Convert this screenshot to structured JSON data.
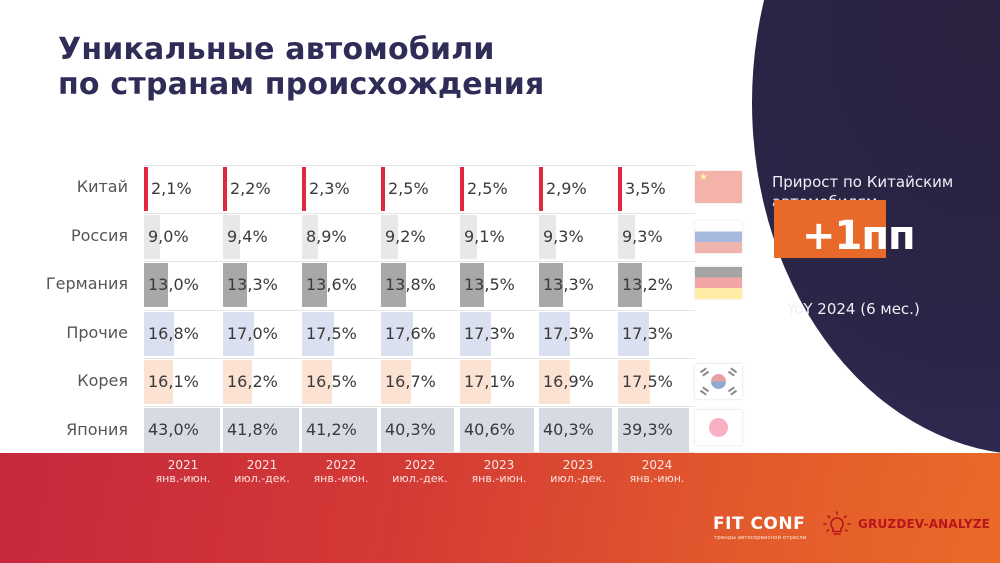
{
  "title": {
    "line1": "Уникальные автомобили",
    "line2": "по странам происхождения"
  },
  "colors": {
    "title": "#2f2d57",
    "china": "#e0293f",
    "russia": "#e8e8e8",
    "germany": "#a8a8a8",
    "other": "#dae0f0",
    "korea": "#fbe2d2",
    "japan": "#d5dae3",
    "badge": "#e86a2a",
    "panel": "#2a2446"
  },
  "chart_data": {
    "type": "table",
    "title": "Уникальные автомобили по странам происхождения",
    "unit": "%",
    "categories": [
      "2021 янв.-июн.",
      "2021 июл.-дек.",
      "2022 янв.-июн.",
      "2022 июл.-дек.",
      "2023 янв.-июн.",
      "2023 июл.-дек.",
      "2024 янв.-июн."
    ],
    "series": [
      {
        "name": "Китай",
        "values": [
          2.1,
          2.2,
          2.3,
          2.5,
          2.5,
          2.9,
          3.5
        ]
      },
      {
        "name": "Россия",
        "values": [
          9.0,
          9.4,
          8.9,
          9.2,
          9.1,
          9.3,
          9.3
        ]
      },
      {
        "name": "Германия",
        "values": [
          13.0,
          13.3,
          13.6,
          13.8,
          13.5,
          13.3,
          13.2
        ]
      },
      {
        "name": "Прочие",
        "values": [
          16.8,
          17.0,
          17.5,
          17.6,
          17.3,
          17.3,
          17.3
        ]
      },
      {
        "name": "Корея",
        "values": [
          16.1,
          16.2,
          16.5,
          16.7,
          17.1,
          16.9,
          17.5
        ]
      },
      {
        "name": "Япония",
        "values": [
          43.0,
          41.8,
          41.2,
          40.3,
          40.6,
          40.3,
          39.3
        ]
      }
    ]
  },
  "rows": [
    {
      "label": "Китай",
      "cells": [
        "2,1%",
        "2,2%",
        "2,3%",
        "2,5%",
        "2,5%",
        "2,9%",
        "3,5%"
      ],
      "flag": "china-flag"
    },
    {
      "label": "Россия",
      "cells": [
        "9,0%",
        "9,4%",
        "8,9%",
        "9,2%",
        "9,1%",
        "9,3%",
        "9,3%"
      ],
      "flag": "russia-flag"
    },
    {
      "label": "Германия",
      "cells": [
        "13,0%",
        "13,3%",
        "13,6%",
        "13,8%",
        "13,5%",
        "13,3%",
        "13,2%"
      ],
      "flag": "germany-flag"
    },
    {
      "label": "Прочие",
      "cells": [
        "16,8%",
        "17,0%",
        "17,5%",
        "17,6%",
        "17,3%",
        "17,3%",
        "17,3%"
      ],
      "flag": null
    },
    {
      "label": "Корея",
      "cells": [
        "16,1%",
        "16,2%",
        "16,5%",
        "16,7%",
        "17,1%",
        "16,9%",
        "17,5%"
      ],
      "flag": "korea-flag"
    },
    {
      "label": "Япония",
      "cells": [
        "43,0%",
        "41,8%",
        "41,2%",
        "40,3%",
        "40,6%",
        "40,3%",
        "39,3%"
      ],
      "flag": "japan-flag"
    }
  ],
  "periods": [
    {
      "year": "2021",
      "months": "янв.-июн."
    },
    {
      "year": "2021",
      "months": "июл.-дек."
    },
    {
      "year": "2022",
      "months": "янв.-июн."
    },
    {
      "year": "2022",
      "months": "июл.-дек."
    },
    {
      "year": "2023",
      "months": "янв.-июн."
    },
    {
      "year": "2023",
      "months": "июл.-дек."
    },
    {
      "year": "2024",
      "months": "янв.-июн."
    }
  ],
  "highlight": {
    "caption_line1": "Прирост по Китайским",
    "caption_line2": "автомобилям",
    "value": "+1пп",
    "note": "YoY 2024 (6 мес.)"
  },
  "footer": {
    "brand": "FIT CONF",
    "brand_sub": "тренды автосервисной отрасли",
    "partner": "GRUZDEV-ANALYZE"
  }
}
